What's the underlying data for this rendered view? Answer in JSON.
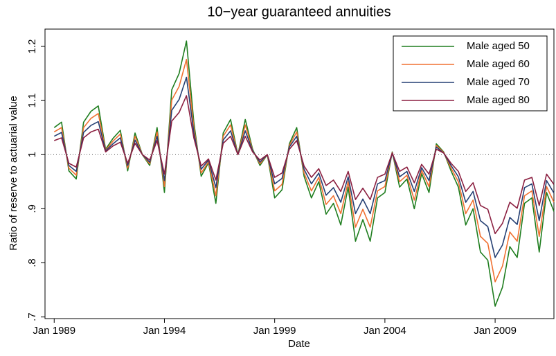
{
  "chart_data": {
    "type": "line",
    "title": "10−year guaranteed annuities",
    "x_label": "Date",
    "y_label": "Ratio of reserve to actuarial value",
    "x": [
      "1989-01",
      "1989-05",
      "1989-09",
      "1990-01",
      "1990-05",
      "1990-09",
      "1991-01",
      "1991-05",
      "1991-09",
      "1992-01",
      "1992-05",
      "1992-09",
      "1993-01",
      "1993-05",
      "1993-09",
      "1994-01",
      "1994-05",
      "1994-09",
      "1995-01",
      "1995-05",
      "1995-09",
      "1996-01",
      "1996-05",
      "1996-09",
      "1997-01",
      "1997-05",
      "1997-09",
      "1998-01",
      "1998-05",
      "1998-09",
      "1999-01",
      "1999-05",
      "1999-09",
      "2000-01",
      "2000-05",
      "2000-09",
      "2001-01",
      "2001-05",
      "2001-09",
      "2002-01",
      "2002-05",
      "2002-09",
      "2003-01",
      "2003-05",
      "2003-09",
      "2004-01",
      "2004-05",
      "2004-09",
      "2005-01",
      "2005-05",
      "2005-09",
      "2006-01",
      "2006-05",
      "2006-09",
      "2007-01",
      "2007-05",
      "2007-09",
      "2008-01",
      "2008-05",
      "2008-09",
      "2009-01",
      "2009-05",
      "2009-09",
      "2010-01",
      "2010-05",
      "2010-09",
      "2011-01",
      "2011-05",
      "2011-09"
    ],
    "series": [
      {
        "name": "Male aged 50",
        "color": "#1e7d1e",
        "values": [
          1.05,
          1.06,
          0.97,
          0.955,
          1.06,
          1.08,
          1.09,
          1.01,
          1.03,
          1.045,
          0.97,
          1.04,
          1.0,
          0.98,
          1.05,
          0.93,
          1.12,
          1.15,
          1.21,
          1.06,
          0.96,
          0.985,
          0.91,
          1.04,
          1.065,
          1.0,
          1.065,
          1.01,
          0.98,
          1.0,
          0.92,
          0.935,
          1.02,
          1.05,
          0.96,
          0.92,
          0.95,
          0.89,
          0.91,
          0.87,
          0.94,
          0.84,
          0.88,
          0.84,
          0.92,
          0.93,
          1.005,
          0.94,
          0.955,
          0.9,
          0.965,
          0.93,
          1.02,
          1.005,
          0.97,
          0.94,
          0.87,
          0.9,
          0.82,
          0.805,
          0.72,
          0.755,
          0.83,
          0.81,
          0.91,
          0.92,
          0.82,
          0.93,
          0.895
        ]
      },
      {
        "name": "Male aged 60",
        "color": "#f07030",
        "values": [
          1.042,
          1.05,
          0.975,
          0.962,
          1.05,
          1.067,
          1.076,
          1.008,
          1.025,
          1.038,
          0.975,
          1.034,
          1.0,
          0.983,
          1.042,
          0.941,
          1.101,
          1.126,
          1.176,
          1.05,
          0.966,
          0.987,
          0.924,
          1.034,
          1.055,
          1.0,
          1.055,
          1.008,
          0.983,
          1.0,
          0.933,
          0.945,
          1.017,
          1.042,
          0.966,
          0.933,
          0.958,
          0.908,
          0.924,
          0.891,
          0.95,
          0.866,
          0.899,
          0.866,
          0.933,
          0.941,
          1.004,
          0.95,
          0.962,
          0.916,
          0.971,
          0.941,
          1.017,
          1.004,
          0.975,
          0.95,
          0.891,
          0.916,
          0.849,
          0.836,
          0.765,
          0.794,
          0.857,
          0.84,
          0.924,
          0.933,
          0.849,
          0.941,
          0.912
        ]
      },
      {
        "name": "Male aged 70",
        "color": "#243f73",
        "values": [
          1.034,
          1.041,
          0.98,
          0.969,
          1.041,
          1.054,
          1.061,
          1.007,
          1.02,
          1.031,
          0.98,
          1.027,
          1.0,
          0.986,
          1.034,
          0.952,
          1.082,
          1.102,
          1.143,
          1.041,
          0.973,
          0.99,
          0.939,
          1.027,
          1.044,
          1.0,
          1.044,
          1.007,
          0.986,
          1.0,
          0.946,
          0.956,
          1.014,
          1.034,
          0.973,
          0.946,
          0.966,
          0.925,
          0.939,
          0.912,
          0.959,
          0.891,
          0.918,
          0.891,
          0.946,
          0.952,
          1.003,
          0.959,
          0.969,
          0.932,
          0.976,
          0.952,
          1.014,
          1.003,
          0.98,
          0.959,
          0.912,
          0.932,
          0.878,
          0.867,
          0.81,
          0.833,
          0.884,
          0.871,
          0.939,
          0.946,
          0.878,
          0.952,
          0.929
        ]
      },
      {
        "name": "Male aged 80",
        "color": "#8b1f40",
        "values": [
          1.026,
          1.031,
          0.984,
          0.977,
          1.031,
          1.042,
          1.047,
          1.005,
          1.016,
          1.023,
          0.984,
          1.021,
          1.0,
          0.99,
          1.026,
          0.964,
          1.062,
          1.078,
          1.109,
          1.031,
          0.979,
          0.992,
          0.953,
          1.021,
          1.034,
          1.0,
          1.034,
          1.005,
          0.99,
          1.0,
          0.958,
          0.966,
          1.01,
          1.026,
          0.979,
          0.958,
          0.974,
          0.943,
          0.953,
          0.932,
          0.969,
          0.917,
          0.938,
          0.917,
          0.958,
          0.964,
          1.003,
          0.969,
          0.977,
          0.948,
          0.982,
          0.964,
          1.01,
          1.003,
          0.984,
          0.969,
          0.932,
          0.948,
          0.906,
          0.899,
          0.854,
          0.873,
          0.912,
          0.901,
          0.953,
          0.958,
          0.906,
          0.964,
          0.945
        ]
      }
    ],
    "xlim": [
      "1988-08",
      "2011-09"
    ],
    "xticks": [
      {
        "value": "1989-01",
        "label": "Jan 1989"
      },
      {
        "value": "1994-01",
        "label": "Jan 1994"
      },
      {
        "value": "1999-01",
        "label": "Jan 1999"
      },
      {
        "value": "2004-01",
        "label": "Jan 2004"
      },
      {
        "value": "2009-01",
        "label": "Jan 2009"
      }
    ],
    "ylim": [
      0.697,
      1.232
    ],
    "yticks": [
      {
        "value": 0.7,
        "label": ".7"
      },
      {
        "value": 0.8,
        "label": ".8"
      },
      {
        "value": 0.9,
        "label": ".9"
      },
      1,
      1.1,
      1.2
    ],
    "reference_line": 1,
    "legend_position": "top-right"
  }
}
